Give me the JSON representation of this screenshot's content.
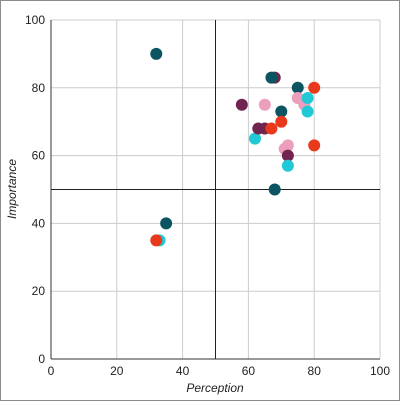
{
  "chart_data": {
    "type": "scatter",
    "title": "",
    "xlabel": "Perception",
    "ylabel": "Importance",
    "xlim": [
      0,
      100
    ],
    "ylim": [
      0,
      100
    ],
    "xticks": [
      0,
      20,
      40,
      60,
      80,
      100
    ],
    "yticks": [
      0,
      20,
      40,
      60,
      80,
      100
    ],
    "grid": true,
    "reference_lines": {
      "x": 50,
      "y": 50,
      "color": "#222222"
    },
    "legend": "none",
    "colors": {
      "dark_teal": "#0b5563",
      "cyan": "#21c9d6",
      "red": "#e8391c",
      "plum": "#6f2550",
      "pink": "#ec9fbd",
      "grid": "#cccccc",
      "axis": "#333333"
    },
    "points": [
      {
        "x": 32,
        "y": 90,
        "color": "#0b5563"
      },
      {
        "x": 35,
        "y": 40,
        "color": "#0b5563"
      },
      {
        "x": 33,
        "y": 35,
        "color": "#21c9d6"
      },
      {
        "x": 32,
        "y": 35,
        "color": "#e8391c"
      },
      {
        "x": 58,
        "y": 75,
        "color": "#6f2550"
      },
      {
        "x": 62,
        "y": 65,
        "color": "#21c9d6"
      },
      {
        "x": 63,
        "y": 68,
        "color": "#6f2550"
      },
      {
        "x": 65,
        "y": 68,
        "color": "#6f2550"
      },
      {
        "x": 65,
        "y": 75,
        "color": "#ec9fbd"
      },
      {
        "x": 67,
        "y": 68,
        "color": "#e8391c"
      },
      {
        "x": 68,
        "y": 83,
        "color": "#6f2550"
      },
      {
        "x": 67,
        "y": 83,
        "color": "#0b5563"
      },
      {
        "x": 68,
        "y": 50,
        "color": "#0b5563"
      },
      {
        "x": 70,
        "y": 73,
        "color": "#0b5563"
      },
      {
        "x": 70,
        "y": 70,
        "color": "#e8391c"
      },
      {
        "x": 71,
        "y": 62,
        "color": "#ec9fbd"
      },
      {
        "x": 72,
        "y": 63,
        "color": "#ec9fbd"
      },
      {
        "x": 72,
        "y": 60,
        "color": "#6f2550"
      },
      {
        "x": 72,
        "y": 57,
        "color": "#21c9d6"
      },
      {
        "x": 75,
        "y": 80,
        "color": "#0b5563"
      },
      {
        "x": 75,
        "y": 77,
        "color": "#ec9fbd"
      },
      {
        "x": 77,
        "y": 75,
        "color": "#ec9fbd"
      },
      {
        "x": 78,
        "y": 77,
        "color": "#21c9d6"
      },
      {
        "x": 78,
        "y": 73,
        "color": "#21c9d6"
      },
      {
        "x": 80,
        "y": 80,
        "color": "#e8391c"
      },
      {
        "x": 80,
        "y": 63,
        "color": "#e8391c"
      }
    ]
  }
}
